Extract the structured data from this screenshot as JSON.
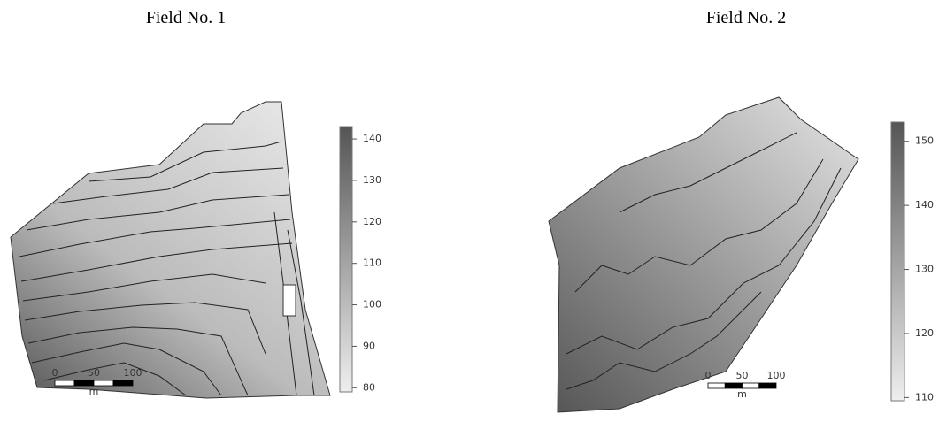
{
  "panels": [
    {
      "title": "Field No. 1",
      "colorbar": {
        "lim": [
          79,
          143
        ],
        "ticks": [
          80,
          90,
          100,
          110,
          120,
          130,
          140
        ]
      },
      "scalebar": {
        "ticks": [
          0,
          50,
          100
        ],
        "unit": "m"
      }
    },
    {
      "title": "Field No. 2",
      "colorbar": {
        "lim": [
          109.5,
          153
        ],
        "ticks": [
          110,
          120,
          130,
          140,
          150
        ]
      },
      "scalebar": {
        "ticks": [
          0,
          50,
          100
        ],
        "unit": "m"
      }
    }
  ]
}
